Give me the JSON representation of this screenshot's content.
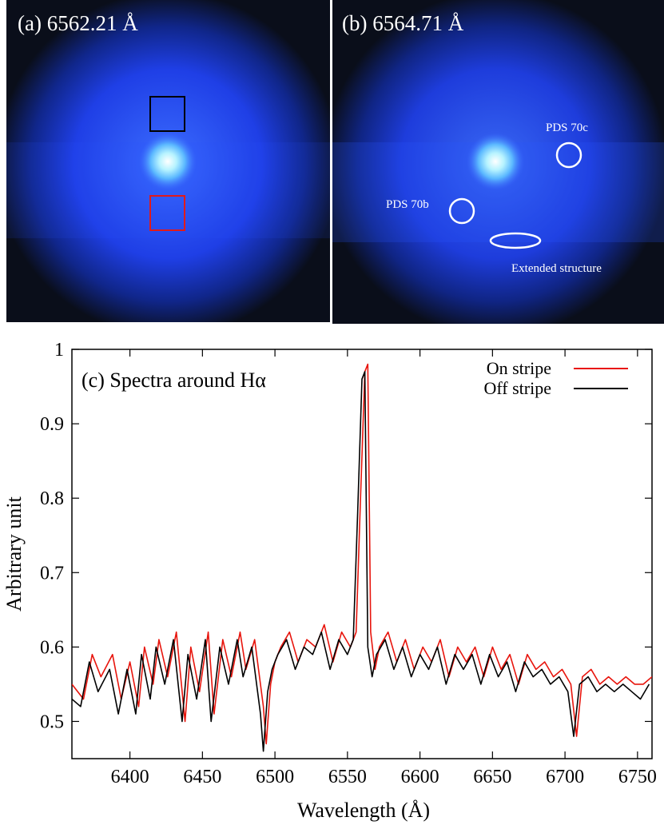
{
  "colors": {
    "on_stripe": "#e8150d",
    "off_stripe": "#000000",
    "background_dark": "#0a0e1a",
    "marker_white": "#ffffff",
    "box_black": "#000000",
    "box_red": "#e11a1a"
  },
  "panel_a": {
    "label": "(a) 6562.21 Å"
  },
  "panel_b": {
    "label": "(b) 6564.71 Å",
    "annotations": {
      "pds70c": "PDS 70c",
      "pds70b": "PDS 70b",
      "extended": "Extended structure"
    }
  },
  "chart_data": {
    "type": "line",
    "title": "(c) Spectra around Hα",
    "xlabel": "Wavelength (Å)",
    "ylabel": "Arbitrary unit",
    "xlim": [
      6360,
      6760
    ],
    "ylim": [
      0.45,
      1.0
    ],
    "x_ticks": [
      6400,
      6450,
      6500,
      6550,
      6600,
      6650,
      6700,
      6750
    ],
    "y_ticks": [
      0.5,
      0.6,
      0.7,
      0.8,
      0.9,
      1.0
    ],
    "y_tick_labels": [
      "0.5",
      "0.6",
      "0.7",
      "0.8",
      "0.9",
      "1"
    ],
    "legend_position": "top-right",
    "series": [
      {
        "name": "On stripe",
        "color": "#e8150d",
        "x": [
          6360,
          6368,
          6374,
          6380,
          6388,
          6394,
          6400,
          6406,
          6410,
          6416,
          6420,
          6426,
          6432,
          6438,
          6442,
          6448,
          6454,
          6458,
          6464,
          6470,
          6476,
          6480,
          6486,
          6492,
          6494,
          6497,
          6500,
          6504,
          6510,
          6516,
          6522,
          6528,
          6534,
          6540,
          6546,
          6552,
          6556,
          6559,
          6562,
          6564,
          6566,
          6569,
          6572,
          6578,
          6584,
          6590,
          6596,
          6602,
          6608,
          6614,
          6620,
          6626,
          6632,
          6638,
          6644,
          6650,
          6656,
          6662,
          6668,
          6674,
          6680,
          6686,
          6692,
          6698,
          6704,
          6708,
          6712,
          6718,
          6724,
          6730,
          6736,
          6742,
          6748,
          6754,
          6760
        ],
        "y": [
          0.55,
          0.53,
          0.59,
          0.56,
          0.59,
          0.53,
          0.58,
          0.52,
          0.6,
          0.55,
          0.61,
          0.56,
          0.62,
          0.5,
          0.6,
          0.54,
          0.62,
          0.51,
          0.61,
          0.56,
          0.62,
          0.57,
          0.61,
          0.52,
          0.47,
          0.55,
          0.58,
          0.6,
          0.62,
          0.58,
          0.61,
          0.6,
          0.63,
          0.58,
          0.62,
          0.6,
          0.62,
          0.8,
          0.97,
          0.98,
          0.62,
          0.57,
          0.6,
          0.62,
          0.58,
          0.61,
          0.57,
          0.6,
          0.58,
          0.61,
          0.56,
          0.6,
          0.58,
          0.6,
          0.56,
          0.6,
          0.57,
          0.59,
          0.55,
          0.59,
          0.57,
          0.58,
          0.56,
          0.57,
          0.55,
          0.48,
          0.56,
          0.57,
          0.55,
          0.56,
          0.55,
          0.56,
          0.55,
          0.55,
          0.56
        ]
      },
      {
        "name": "Off stripe",
        "color": "#000000",
        "x": [
          6360,
          6366,
          6372,
          6378,
          6386,
          6392,
          6398,
          6404,
          6408,
          6414,
          6418,
          6424,
          6430,
          6436,
          6440,
          6446,
          6452,
          6456,
          6462,
          6468,
          6474,
          6478,
          6484,
          6490,
          6492,
          6495,
          6498,
          6502,
          6508,
          6514,
          6520,
          6526,
          6532,
          6538,
          6544,
          6550,
          6554,
          6557,
          6560,
          6562,
          6564,
          6567,
          6570,
          6576,
          6582,
          6588,
          6594,
          6600,
          6606,
          6612,
          6618,
          6624,
          6630,
          6636,
          6642,
          6648,
          6654,
          6660,
          6666,
          6672,
          6678,
          6684,
          6690,
          6696,
          6702,
          6706,
          6710,
          6716,
          6722,
          6728,
          6734,
          6740,
          6746,
          6752,
          6758
        ],
        "y": [
          0.53,
          0.52,
          0.58,
          0.54,
          0.57,
          0.51,
          0.57,
          0.51,
          0.59,
          0.53,
          0.6,
          0.55,
          0.61,
          0.5,
          0.59,
          0.53,
          0.61,
          0.5,
          0.6,
          0.55,
          0.61,
          0.56,
          0.6,
          0.51,
          0.46,
          0.54,
          0.57,
          0.59,
          0.61,
          0.57,
          0.6,
          0.59,
          0.62,
          0.57,
          0.61,
          0.59,
          0.61,
          0.78,
          0.96,
          0.97,
          0.6,
          0.56,
          0.59,
          0.61,
          0.57,
          0.6,
          0.56,
          0.59,
          0.57,
          0.6,
          0.55,
          0.59,
          0.57,
          0.59,
          0.55,
          0.59,
          0.56,
          0.58,
          0.54,
          0.58,
          0.56,
          0.57,
          0.55,
          0.56,
          0.54,
          0.48,
          0.55,
          0.56,
          0.54,
          0.55,
          0.54,
          0.55,
          0.54,
          0.53,
          0.55
        ]
      }
    ]
  }
}
